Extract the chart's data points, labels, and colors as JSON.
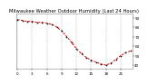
{
  "title": "Milwaukee Weather Outdoor Humidity (Last 24 Hours)",
  "x_hours": [
    0,
    1,
    2,
    3,
    4,
    5,
    6,
    7,
    8,
    9,
    10,
    11,
    12,
    13,
    14,
    15,
    16,
    17,
    18,
    19,
    20,
    21,
    22,
    23
  ],
  "humidity": [
    88,
    87,
    86,
    86,
    85,
    85,
    84,
    83,
    80,
    76,
    70,
    64,
    57,
    52,
    48,
    45,
    43,
    41,
    40,
    42,
    46,
    50,
    53,
    55
  ],
  "line_color": "#dd0000",
  "marker_color": "#111111",
  "bg_color": "#ffffff",
  "plot_bg_color": "#ffffff",
  "grid_color": "#999999",
  "ylim": [
    36,
    94
  ],
  "yticks": [
    40,
    50,
    60,
    70,
    80,
    90
  ],
  "title_fontsize": 3.8,
  "tick_fontsize": 3.0
}
